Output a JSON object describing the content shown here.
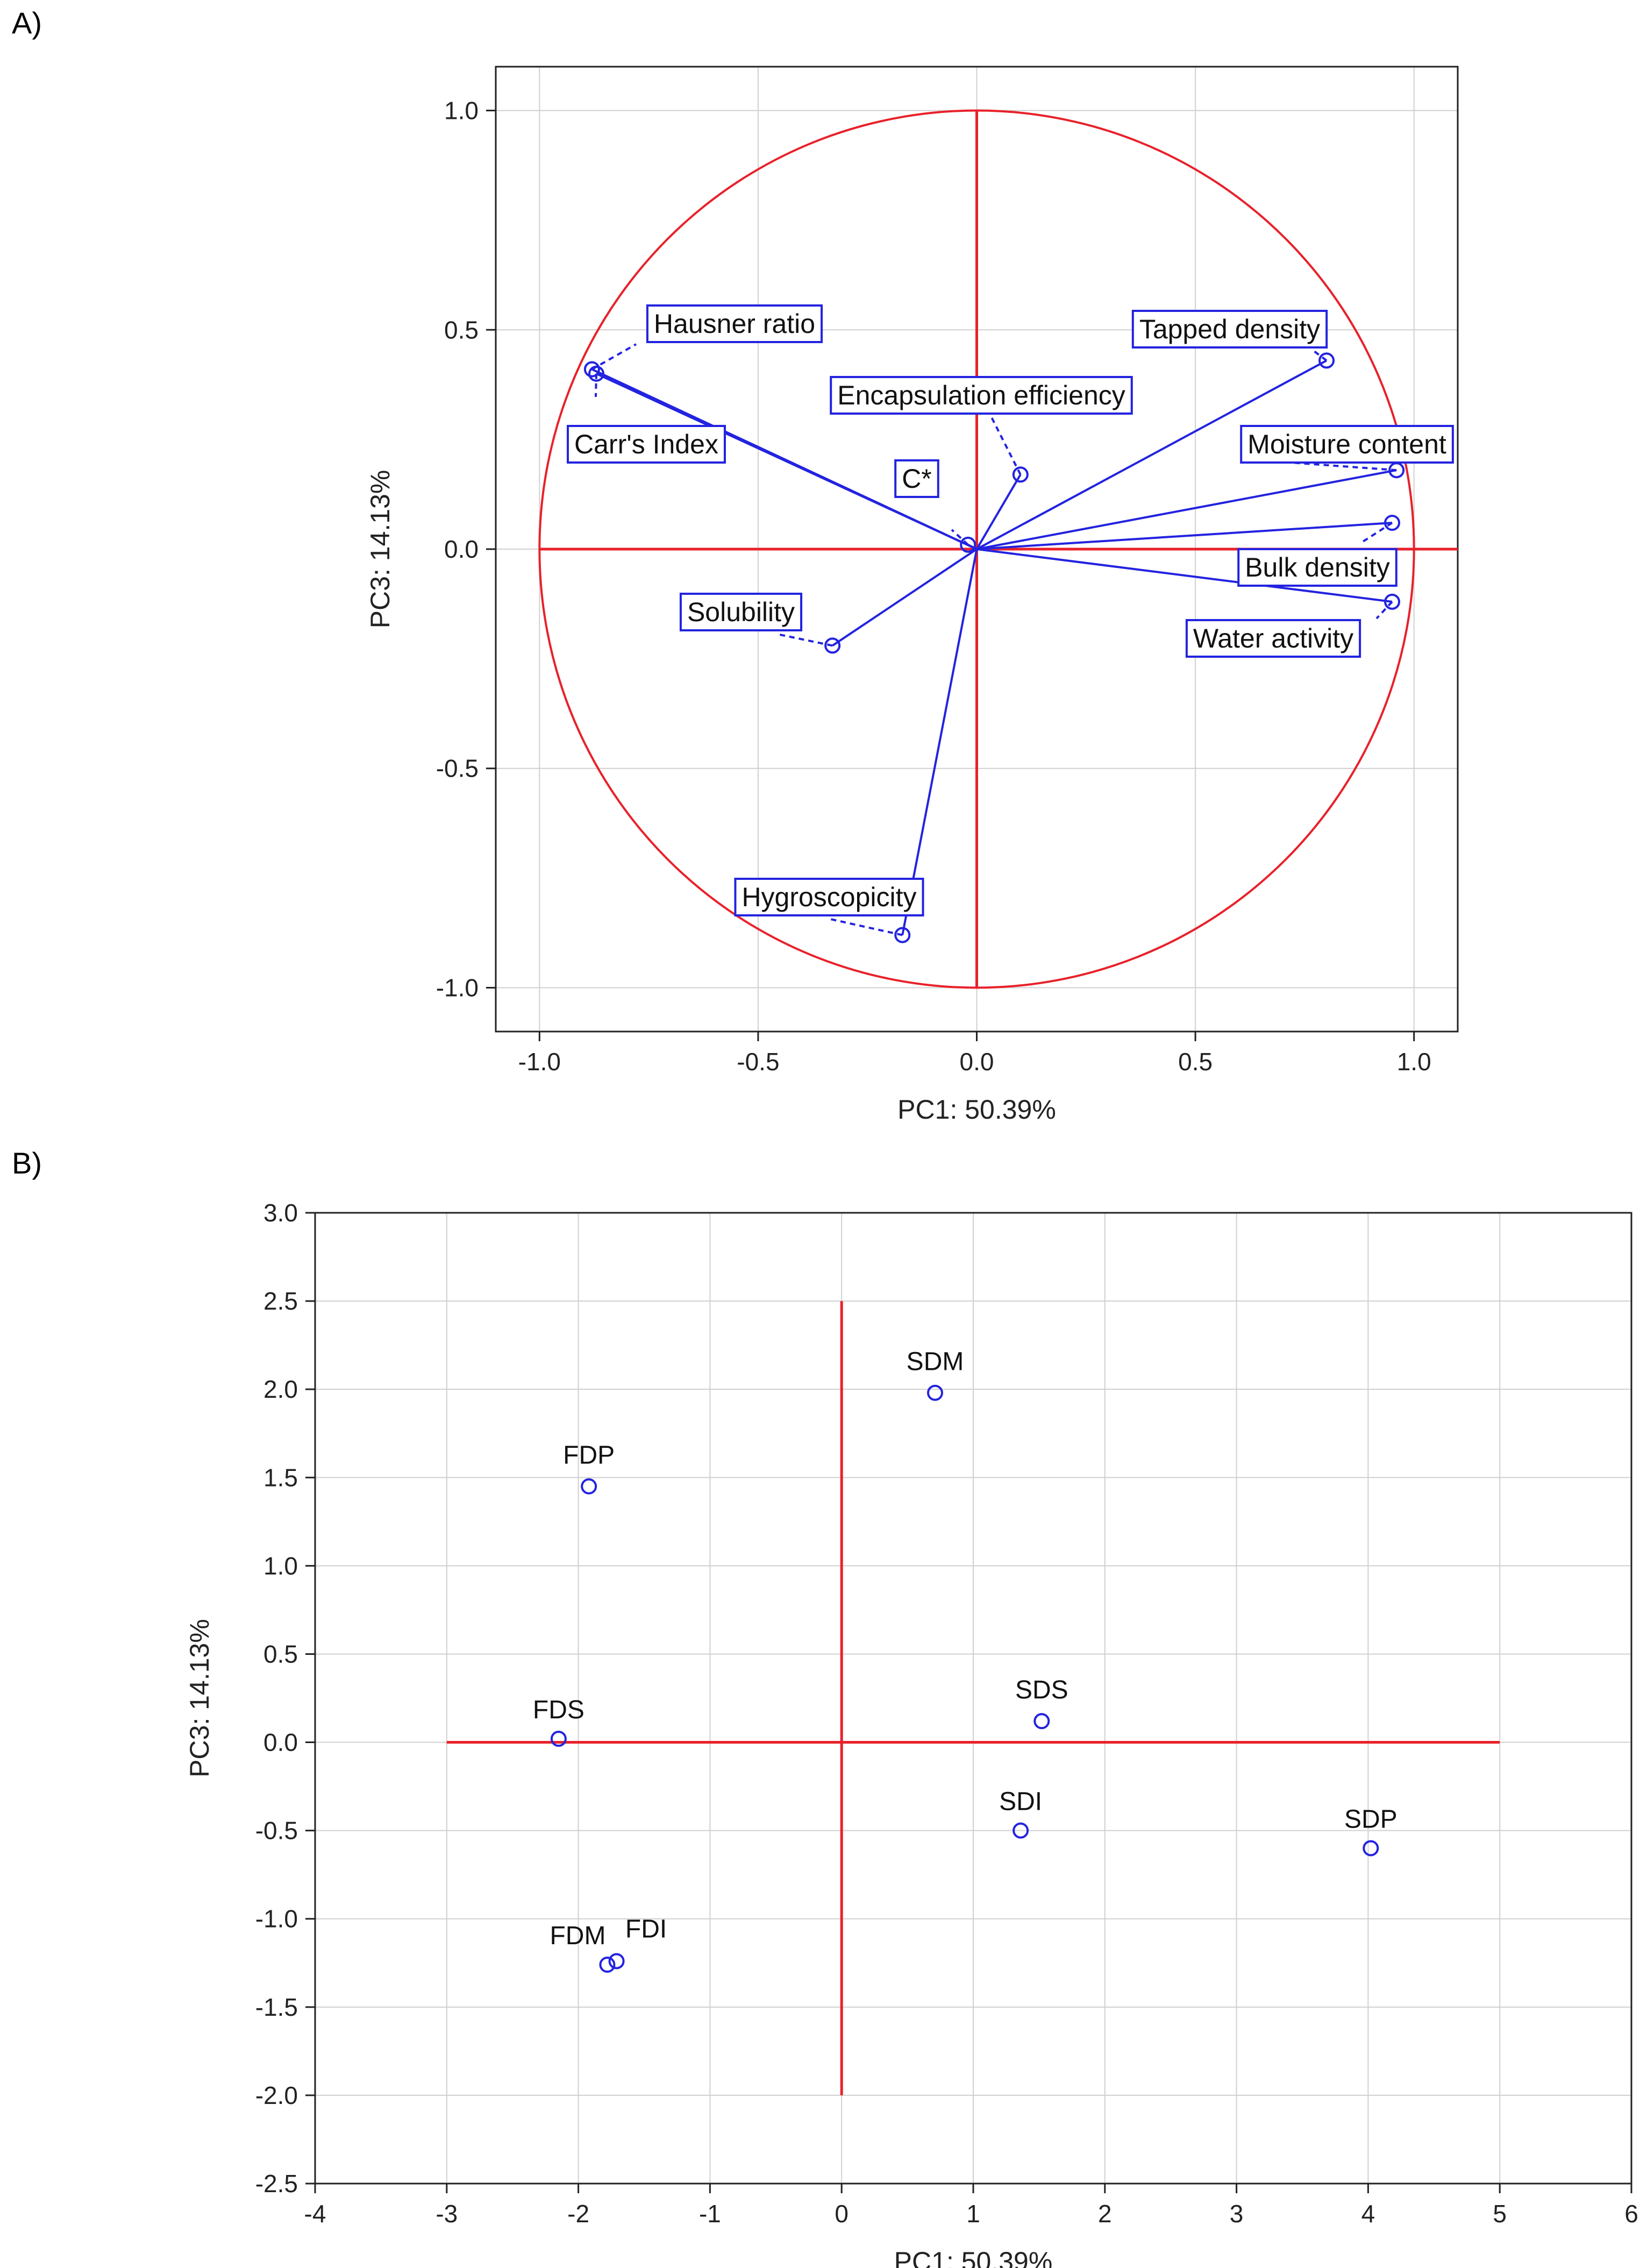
{
  "panels": [
    {
      "label": "A)"
    },
    {
      "label": "B)"
    }
  ],
  "colors": {
    "accent": "#e8212a",
    "series": "#2323e0",
    "grid": "#d0d0d0",
    "frame": "#222222"
  },
  "chart_data": [
    {
      "type": "scatter",
      "subtype": "pca-loading-plot",
      "xlabel": "PC1: 50.39%",
      "ylabel": "PC3: 14.13%",
      "xlim": [
        -1.1,
        1.1
      ],
      "ylim": [
        -1.1,
        1.1
      ],
      "xticks": [
        "-1.0",
        "-0.5",
        "0.0",
        "0.5",
        "1.0"
      ],
      "yticks": [
        "1.0",
        "0.5",
        "0.0",
        "-0.5",
        "-1.0"
      ],
      "xtick_values": [
        -1.0,
        -0.5,
        0.0,
        0.5,
        1.0
      ],
      "ytick_values": [
        1.0,
        0.5,
        0.0,
        -0.5,
        -1.0
      ],
      "grid": true,
      "unit_circle": true,
      "points": [
        {
          "name": "Hausner ratio",
          "x": -0.88,
          "y": 0.41
        },
        {
          "name": "Carr's Index",
          "x": -0.87,
          "y": 0.4
        },
        {
          "name": "Tapped density",
          "x": 0.8,
          "y": 0.43
        },
        {
          "name": "Encapsulation efficiency",
          "x": 0.1,
          "y": 0.17
        },
        {
          "name": "C*",
          "x": -0.02,
          "y": 0.01
        },
        {
          "name": "Moisture content",
          "x": 0.96,
          "y": 0.18
        },
        {
          "name": "Bulk density",
          "x": 0.95,
          "y": 0.06
        },
        {
          "name": "Water activity",
          "x": 0.95,
          "y": -0.12
        },
        {
          "name": "Solubility",
          "x": -0.33,
          "y": -0.22
        },
        {
          "name": "Hygroscopicity",
          "x": -0.17,
          "y": -0.88
        }
      ]
    },
    {
      "type": "scatter",
      "subtype": "pca-score-plot",
      "xlabel": "PC1: 50.39%",
      "ylabel": "PC3: 14.13%",
      "xlim": [
        -4,
        6
      ],
      "ylim": [
        -2.5,
        3.0
      ],
      "xticks": [
        "-4",
        "-3",
        "-2",
        "-1",
        "0",
        "1",
        "2",
        "3",
        "4",
        "5",
        "6"
      ],
      "yticks": [
        "3.0",
        "2.5",
        "2.0",
        "1.5",
        "1.0",
        "0.5",
        "0.0",
        "-0.5",
        "-1.0",
        "-1.5",
        "-2.0",
        "-2.5"
      ],
      "xtick_values": [
        -4,
        -3,
        -2,
        -1,
        0,
        1,
        2,
        3,
        4,
        5,
        6
      ],
      "ytick_values": [
        3.0,
        2.5,
        2.0,
        1.5,
        1.0,
        0.5,
        0.0,
        -0.5,
        -1.0,
        -1.5,
        -2.0,
        -2.5
      ],
      "grid": true,
      "points": [
        {
          "name": "SDM",
          "x": 0.71,
          "y": 1.98
        },
        {
          "name": "FDP",
          "x": -1.92,
          "y": 1.45
        },
        {
          "name": "FDS",
          "x": -2.15,
          "y": 0.02
        },
        {
          "name": "SDS",
          "x": 1.52,
          "y": 0.12
        },
        {
          "name": "SDI",
          "x": 1.36,
          "y": -0.5
        },
        {
          "name": "SDP",
          "x": 4.02,
          "y": -0.6
        },
        {
          "name": "FDM",
          "x": -1.78,
          "y": -1.26
        },
        {
          "name": "FDI",
          "x": -1.71,
          "y": -1.24
        }
      ]
    }
  ]
}
